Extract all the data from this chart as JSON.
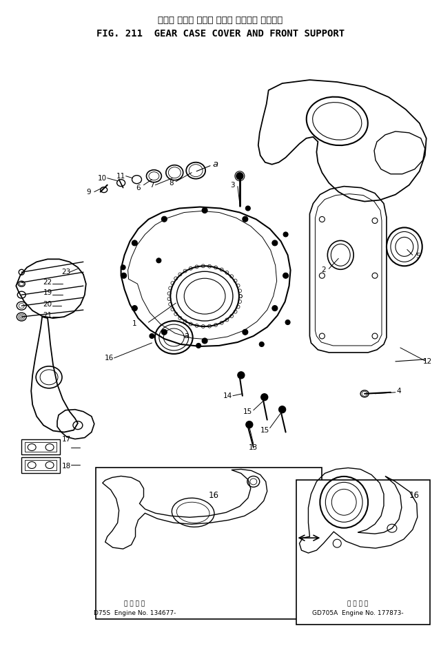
{
  "title_japanese": "ギヤー ケース カバー および フロント サポート",
  "title_english": "FIG. 211  GEAR CASE COVER AND FRONT SUPPORT",
  "bg_color": "#ffffff",
  "fig_width": 6.4,
  "fig_height": 9.73,
  "caption_left_jp": "適 用 号 機",
  "caption_left": "D75S  Engine No. 134677-",
  "caption_right_jp": "適 用 号 機",
  "caption_right": "GD705A  Engine No. 177873-"
}
